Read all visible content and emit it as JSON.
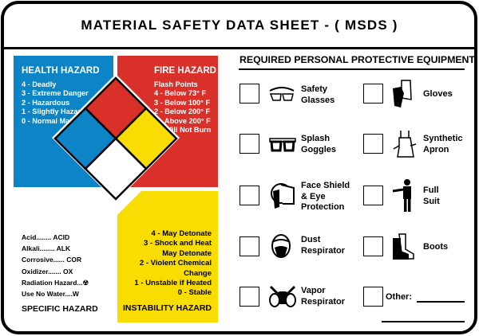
{
  "title": "MATERIAL SAFETY DATA SHEET - ( MSDS )",
  "health": {
    "title": "HEALTH HAZARD",
    "items": [
      "4 - Deadly",
      "3 - Extreme Danger",
      "2 - Hazardous",
      "1 - Slightly Hazardous",
      "0 - Normal Material"
    ],
    "color": "#0d84c6"
  },
  "fire": {
    "title": "FIRE HAZARD",
    "subtitle": "Flash Points",
    "items": [
      "4 - Below 73° F",
      "3 - Below 100° F",
      "2 - Below 200° F",
      "1 - Above 200° F",
      "0 - Will Not Burn"
    ],
    "color": "#d9302a"
  },
  "instability": {
    "title": "INSTABILITY HAZARD",
    "items": [
      "4 - May Detonate",
      "3 - Shock and Heat",
      "May Detonate",
      "2 - Violent Chemical",
      "Change",
      "1 - Unstable if Heated",
      "0 - Stable"
    ],
    "color": "#f9dc00"
  },
  "specific": {
    "title": "SPECIFIC HAZARD",
    "items": [
      "Acid........ ACID",
      "Alkali........ ALK",
      "Corrosive...... COR",
      "Oxidizer....... OX",
      "Radiation Hazard...",
      "Use No Water....W"
    ]
  },
  "ppe": {
    "title": "REQUIRED PERSONAL PROTECTIVE EQUIPMENT",
    "items": [
      {
        "l1": "Safety",
        "l2": "Glasses",
        "l3": "",
        "icon": "safety-glasses-icon"
      },
      {
        "l1": "Splash",
        "l2": "Goggles",
        "l3": "",
        "icon": "goggles-icon"
      },
      {
        "l1": "Face Shield",
        "l2": "& Eye",
        "l3": "Protection",
        "icon": "face-shield-icon"
      },
      {
        "l1": "Dust",
        "l2": "Respirator",
        "l3": "",
        "icon": "dust-respirator-icon"
      },
      {
        "l1": "Vapor",
        "l2": "Respirator",
        "l3": "",
        "icon": "vapor-respirator-icon"
      },
      {
        "l1": "Gloves",
        "l2": "",
        "l3": "",
        "icon": "gloves-icon"
      },
      {
        "l1": "Synthetic",
        "l2": "Apron",
        "l3": "",
        "icon": "apron-icon"
      },
      {
        "l1": "Full",
        "l2": "Suit",
        "l3": "",
        "icon": "full-suit-icon"
      },
      {
        "l1": "Boots",
        "l2": "",
        "l3": "",
        "icon": "boots-icon"
      },
      {
        "l1": "Other:",
        "l2": "",
        "l3": "",
        "icon": ""
      }
    ]
  }
}
